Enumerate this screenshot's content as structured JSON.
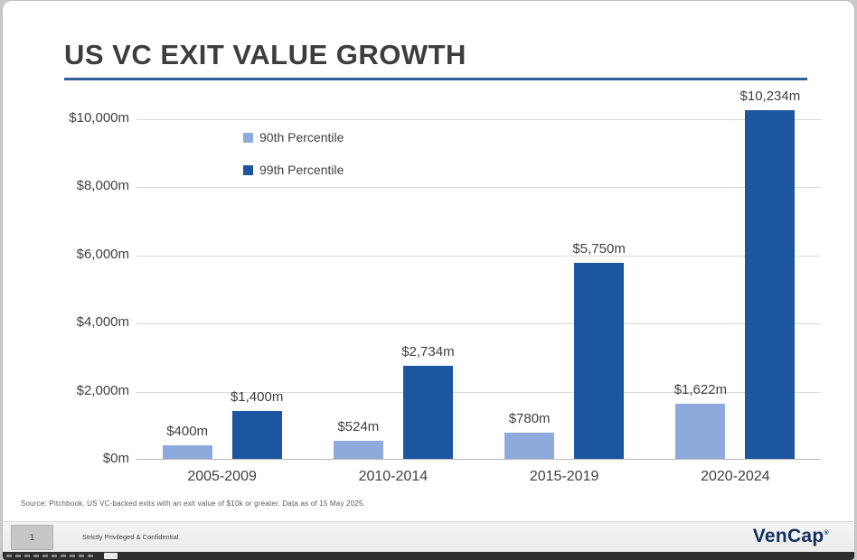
{
  "slide": {
    "title": "US VC EXIT VALUE GROWTH",
    "source": "Source: Pitchbook.  US VC-backed exits with an exit value of $10k or greater.  Data as of 15 May 2025."
  },
  "chart_data": {
    "type": "bar",
    "title": "US VC EXIT VALUE GROWTH",
    "categories": [
      "2005-2009",
      "2010-2014",
      "2015-2019",
      "2020-2024"
    ],
    "series": [
      {
        "name": "90th Percentile",
        "color": "#8ea9db",
        "values": [
          400,
          524,
          780,
          1622
        ],
        "labels": [
          "$400m",
          "$524m",
          "$780m",
          "$1,622m"
        ]
      },
      {
        "name": "99th Percentile",
        "color": "#1c56a0",
        "values": [
          1400,
          2734,
          5750,
          10234
        ],
        "labels": [
          "$1,400m",
          "$2,734m",
          "$5,750m",
          "$10,234m"
        ]
      }
    ],
    "xlabel": "",
    "ylabel": "",
    "ylim": [
      0,
      10000
    ],
    "y_ticks": [
      {
        "value": 0,
        "label": "$0m"
      },
      {
        "value": 2000,
        "label": "$2,000m"
      },
      {
        "value": 4000,
        "label": "$4,000m"
      },
      {
        "value": 6000,
        "label": "$6,000m"
      },
      {
        "value": 8000,
        "label": "$8,000m"
      },
      {
        "value": 10000,
        "label": "$10,000m"
      }
    ],
    "grid": true,
    "legend_position": "top-left-inside"
  },
  "footer": {
    "slide_number": "1",
    "confidential": "Strictly Privileged & Confidential",
    "logo": "VenCap",
    "logo_mark": "®"
  },
  "colors": {
    "accent_rule": "#2e5e9e",
    "series_90th": "#8ea9db",
    "series_99th": "#1c56a0"
  }
}
